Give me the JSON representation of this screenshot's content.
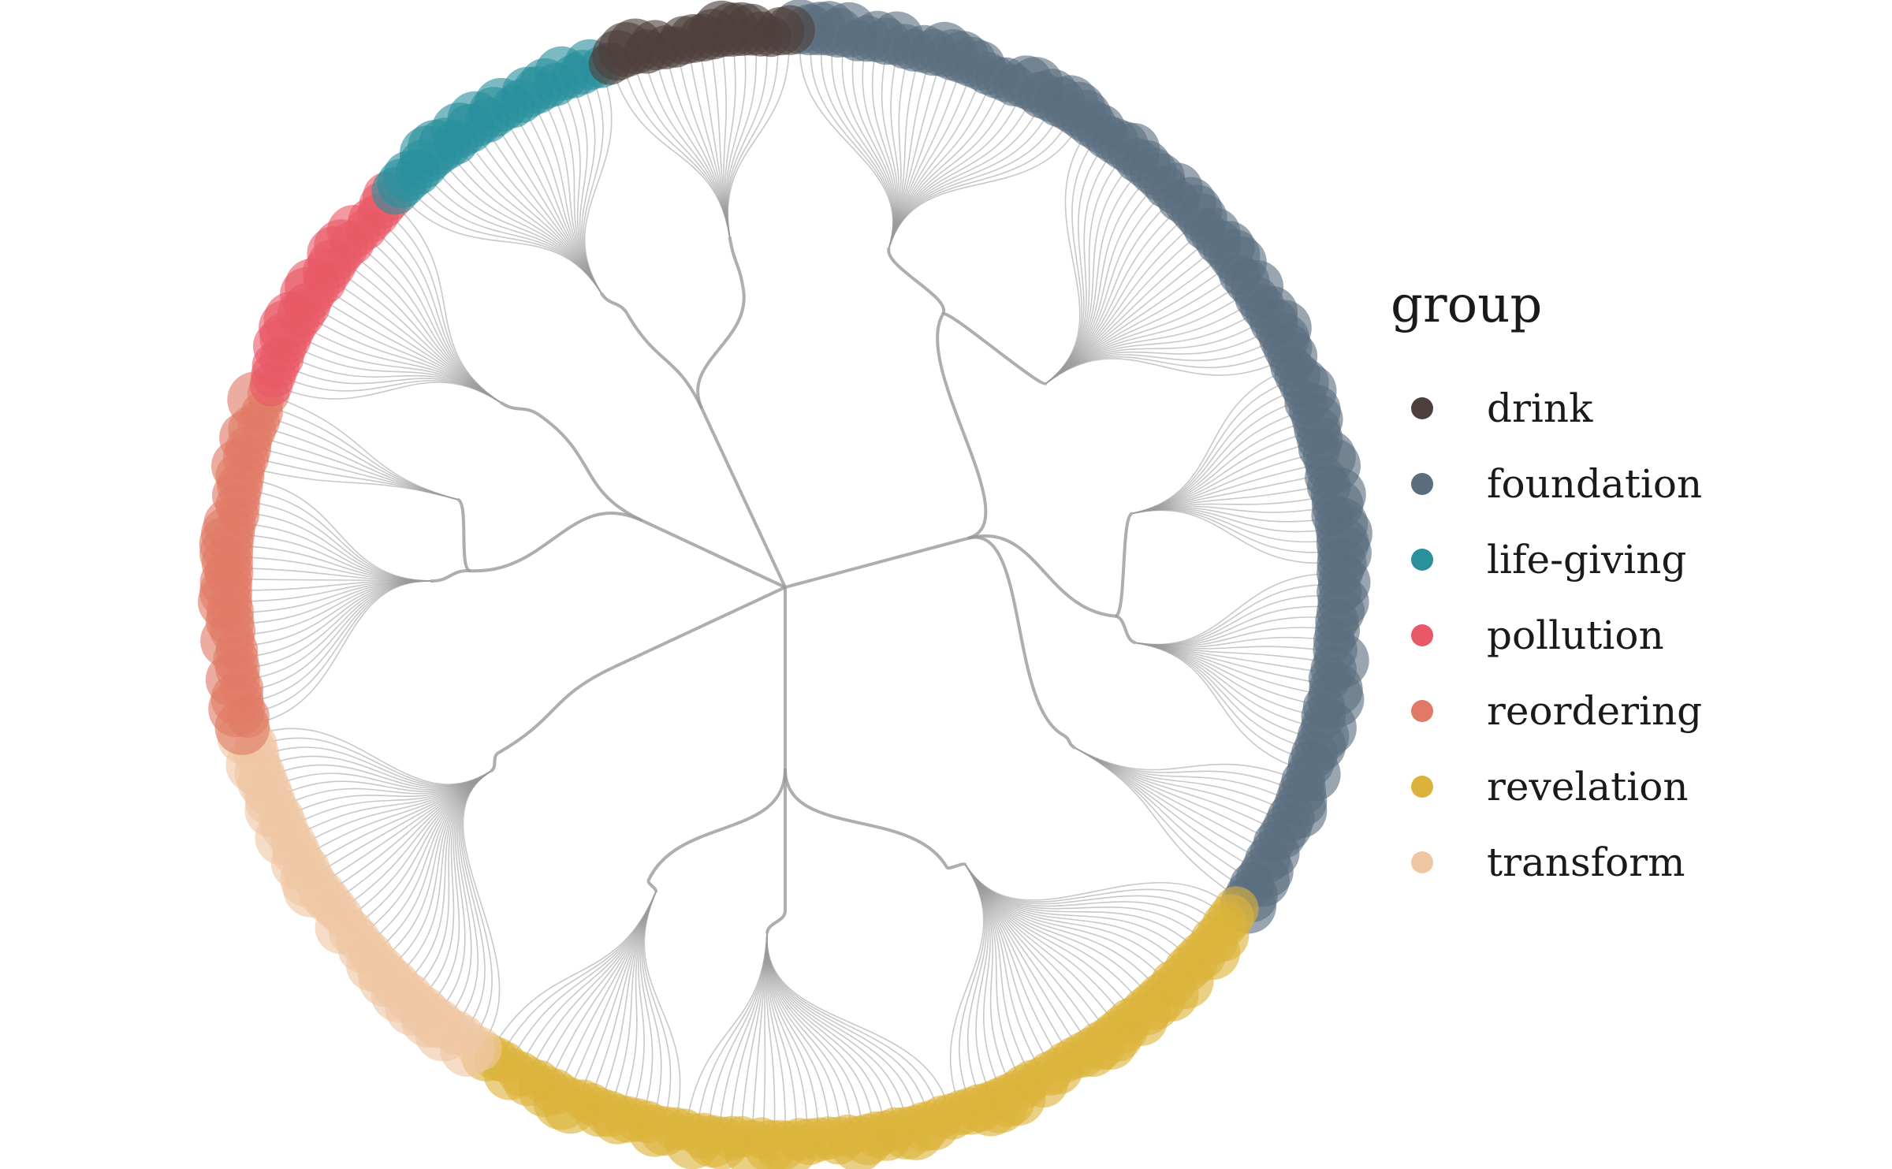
{
  "legend": {
    "title": "group",
    "items": [
      {
        "label": "drink",
        "color": "#4d3f3c"
      },
      {
        "label": "foundation",
        "color": "#5a6e80"
      },
      {
        "label": "life-giving",
        "color": "#2a909c"
      },
      {
        "label": "pollution",
        "color": "#e85866"
      },
      {
        "label": "reordering",
        "color": "#e07a66"
      },
      {
        "label": "revelation",
        "color": "#dbb33a"
      },
      {
        "label": "transform",
        "color": "#efc7a3"
      }
    ]
  },
  "dendrogram": {
    "type": "circular-dendrogram",
    "node_glyph": "circle",
    "edge_color": "#9a9a9a"
  }
}
